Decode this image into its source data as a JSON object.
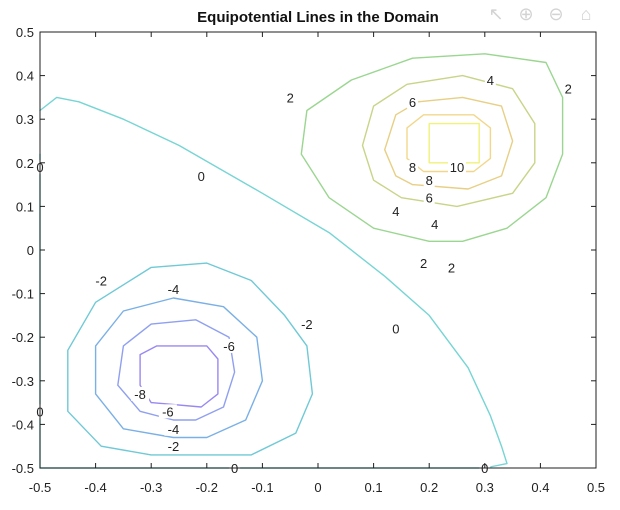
{
  "toolbar": {
    "icons": [
      "arrow-icon",
      "zoom-in-icon",
      "zoom-out-icon",
      "home-icon"
    ]
  },
  "chart_data": {
    "type": "contour",
    "title": "Equipotential Lines in the Domain",
    "xlabel": "",
    "ylabel": "",
    "xlim": [
      -0.5,
      0.5
    ],
    "ylim": [
      -0.5,
      0.5
    ],
    "xticks": [
      "-0.5",
      "-0.4",
      "-0.3",
      "-0.2",
      "-0.1",
      "0",
      "0.1",
      "0.2",
      "0.3",
      "0.4",
      "0.5"
    ],
    "yticks": [
      "0.5",
      "0.4",
      "0.3",
      "0.2",
      "0.1",
      "0",
      "-0.1",
      "-0.2",
      "-0.3",
      "-0.4",
      "-0.5"
    ],
    "grid": false,
    "colormap": "parula",
    "contours": [
      {
        "level": 10,
        "color": "#f0f27a",
        "points": [
          [
            0.2,
            0.2
          ],
          [
            0.2,
            0.29
          ],
          [
            0.29,
            0.29
          ],
          [
            0.29,
            0.2
          ],
          [
            0.2,
            0.2
          ]
        ]
      },
      {
        "level": 8,
        "color": "#f2d78b",
        "points": [
          [
            0.19,
            0.18
          ],
          [
            0.16,
            0.21
          ],
          [
            0.16,
            0.28
          ],
          [
            0.19,
            0.31
          ],
          [
            0.28,
            0.31
          ],
          [
            0.31,
            0.28
          ],
          [
            0.31,
            0.21
          ],
          [
            0.28,
            0.18
          ],
          [
            0.19,
            0.18
          ]
        ]
      },
      {
        "level": 6,
        "color": "#e7cf84",
        "points": [
          [
            0.17,
            0.15
          ],
          [
            0.14,
            0.17
          ],
          [
            0.12,
            0.23
          ],
          [
            0.14,
            0.31
          ],
          [
            0.18,
            0.34
          ],
          [
            0.26,
            0.35
          ],
          [
            0.33,
            0.33
          ],
          [
            0.35,
            0.25
          ],
          [
            0.33,
            0.17
          ],
          [
            0.27,
            0.14
          ],
          [
            0.17,
            0.15
          ]
        ]
      },
      {
        "level": 4,
        "color": "#c9d488",
        "points": [
          [
            0.15,
            0.12
          ],
          [
            0.1,
            0.16
          ],
          [
            0.08,
            0.24
          ],
          [
            0.1,
            0.33
          ],
          [
            0.16,
            0.38
          ],
          [
            0.26,
            0.4
          ],
          [
            0.35,
            0.37
          ],
          [
            0.39,
            0.29
          ],
          [
            0.39,
            0.2
          ],
          [
            0.35,
            0.13
          ],
          [
            0.25,
            0.1
          ],
          [
            0.15,
            0.12
          ]
        ]
      },
      {
        "level": 2,
        "color": "#9ad690",
        "points": [
          [
            0.2,
            0.02
          ],
          [
            0.1,
            0.05
          ],
          [
            0.02,
            0.12
          ],
          [
            -0.03,
            0.22
          ],
          [
            -0.02,
            0.32
          ],
          [
            0.06,
            0.39
          ],
          [
            0.17,
            0.44
          ],
          [
            0.3,
            0.45
          ],
          [
            0.41,
            0.43
          ],
          [
            0.44,
            0.35
          ],
          [
            0.44,
            0.22
          ],
          [
            0.41,
            0.12
          ],
          [
            0.34,
            0.05
          ],
          [
            0.26,
            0.02
          ],
          [
            0.2,
            0.02
          ]
        ]
      },
      {
        "level": 0,
        "color": "#76d5d4",
        "points": [
          [
            -0.5,
            0.32
          ],
          [
            -0.47,
            0.35
          ],
          [
            -0.43,
            0.34
          ],
          [
            -0.35,
            0.3
          ],
          [
            -0.25,
            0.24
          ],
          [
            -0.1,
            0.13
          ],
          [
            0.02,
            0.04
          ],
          [
            0.12,
            -0.06
          ],
          [
            0.2,
            -0.15
          ],
          [
            0.27,
            -0.27
          ],
          [
            0.31,
            -0.38
          ],
          [
            0.33,
            -0.45
          ],
          [
            0.34,
            -0.49
          ],
          [
            0.3,
            -0.5
          ]
        ]
      },
      {
        "level": 0,
        "color": "#76d5d4",
        "points": [
          [
            -0.5,
            0.22
          ],
          [
            -0.5,
            -0.5
          ]
        ]
      },
      {
        "level": 0,
        "color": "#76d5d4",
        "points": [
          [
            -0.5,
            -0.5
          ],
          [
            0.3,
            -0.5
          ]
        ]
      },
      {
        "level": -2,
        "color": "#6fc9d6",
        "points": [
          [
            -0.3,
            -0.47
          ],
          [
            -0.39,
            -0.45
          ],
          [
            -0.45,
            -0.37
          ],
          [
            -0.45,
            -0.23
          ],
          [
            -0.4,
            -0.12
          ],
          [
            -0.3,
            -0.04
          ],
          [
            -0.2,
            -0.03
          ],
          [
            -0.12,
            -0.07
          ],
          [
            -0.06,
            -0.15
          ],
          [
            -0.02,
            -0.22
          ],
          [
            -0.01,
            -0.33
          ],
          [
            -0.04,
            -0.42
          ],
          [
            -0.12,
            -0.47
          ],
          [
            -0.3,
            -0.47
          ]
        ]
      },
      {
        "level": -4,
        "color": "#7ab0e6",
        "points": [
          [
            -0.26,
            -0.43
          ],
          [
            -0.35,
            -0.41
          ],
          [
            -0.4,
            -0.33
          ],
          [
            -0.4,
            -0.22
          ],
          [
            -0.35,
            -0.14
          ],
          [
            -0.26,
            -0.11
          ],
          [
            -0.17,
            -0.13
          ],
          [
            -0.11,
            -0.2
          ],
          [
            -0.1,
            -0.3
          ],
          [
            -0.13,
            -0.39
          ],
          [
            -0.2,
            -0.43
          ],
          [
            -0.26,
            -0.43
          ]
        ]
      },
      {
        "level": -6,
        "color": "#8fa0f0",
        "points": [
          [
            -0.26,
            -0.39
          ],
          [
            -0.32,
            -0.37
          ],
          [
            -0.36,
            -0.31
          ],
          [
            -0.35,
            -0.22
          ],
          [
            -0.3,
            -0.17
          ],
          [
            -0.22,
            -0.16
          ],
          [
            -0.16,
            -0.2
          ],
          [
            -0.15,
            -0.28
          ],
          [
            -0.17,
            -0.36
          ],
          [
            -0.22,
            -0.39
          ],
          [
            -0.26,
            -0.39
          ]
        ]
      },
      {
        "level": -8,
        "color": "#9a88f2",
        "points": [
          [
            -0.3,
            -0.35
          ],
          [
            -0.32,
            -0.31
          ],
          [
            -0.32,
            -0.24
          ],
          [
            -0.29,
            -0.22
          ],
          [
            -0.2,
            -0.22
          ],
          [
            -0.18,
            -0.25
          ],
          [
            -0.18,
            -0.33
          ],
          [
            -0.21,
            -0.36
          ],
          [
            -0.3,
            -0.35
          ]
        ]
      }
    ],
    "level_labels": [
      {
        "text": "2",
        "x": -0.05,
        "y": 0.35
      },
      {
        "text": "4",
        "x": 0.31,
        "y": 0.39
      },
      {
        "text": "2",
        "x": 0.45,
        "y": 0.37
      },
      {
        "text": "6",
        "x": 0.17,
        "y": 0.34
      },
      {
        "text": "0",
        "x": -0.5,
        "y": 0.19
      },
      {
        "text": "0",
        "x": -0.21,
        "y": 0.17
      },
      {
        "text": "8",
        "x": 0.17,
        "y": 0.19
      },
      {
        "text": "10",
        "x": 0.25,
        "y": 0.19
      },
      {
        "text": "8",
        "x": 0.2,
        "y": 0.16
      },
      {
        "text": "6",
        "x": 0.2,
        "y": 0.12
      },
      {
        "text": "4",
        "x": 0.14,
        "y": 0.09
      },
      {
        "text": "4",
        "x": 0.21,
        "y": 0.06
      },
      {
        "text": "2",
        "x": 0.19,
        "y": -0.03
      },
      {
        "text": "2",
        "x": 0.24,
        "y": -0.04
      },
      {
        "text": "-2",
        "x": -0.39,
        "y": -0.07
      },
      {
        "text": "-4",
        "x": -0.26,
        "y": -0.09
      },
      {
        "text": "-2",
        "x": -0.02,
        "y": -0.17
      },
      {
        "text": "0",
        "x": 0.14,
        "y": -0.18
      },
      {
        "text": "-6",
        "x": -0.16,
        "y": -0.22
      },
      {
        "text": "-8",
        "x": -0.32,
        "y": -0.33
      },
      {
        "text": "-6",
        "x": -0.27,
        "y": -0.37
      },
      {
        "text": "0",
        "x": -0.5,
        "y": -0.37
      },
      {
        "text": "-4",
        "x": -0.26,
        "y": -0.41
      },
      {
        "text": "-2",
        "x": -0.26,
        "y": -0.45
      },
      {
        "text": "0",
        "x": -0.15,
        "y": -0.5
      },
      {
        "text": "0",
        "x": 0.3,
        "y": -0.5
      }
    ]
  }
}
